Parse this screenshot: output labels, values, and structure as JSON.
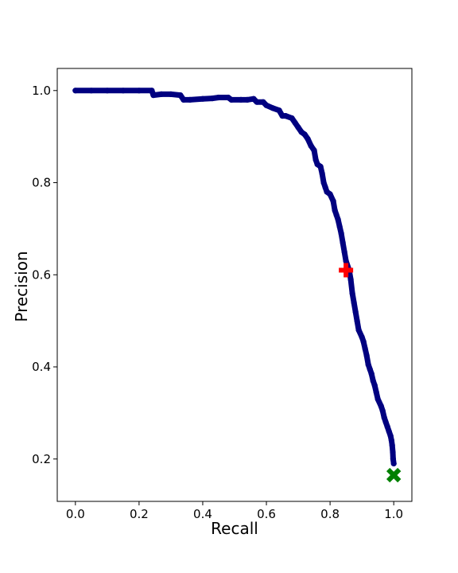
{
  "chart_data": {
    "type": "line",
    "title": "",
    "xlabel": "Recall",
    "ylabel": "Precision",
    "xlim": [
      -0.057,
      1.057
    ],
    "ylim": [
      0.108,
      1.048
    ],
    "xticks": [
      0.0,
      0.2,
      0.4,
      0.6,
      0.8,
      1.0
    ],
    "yticks": [
      0.2,
      0.4,
      0.6,
      0.8,
      1.0
    ],
    "xtick_labels": [
      "0.0",
      "0.2",
      "0.4",
      "0.6",
      "0.8",
      "1.0"
    ],
    "ytick_labels": [
      "0.2",
      "0.4",
      "0.6",
      "0.8",
      "1.0"
    ],
    "grid": false,
    "series": [
      {
        "marker": "circle",
        "color": "#000080",
        "x": [
          0.0,
          0.05,
          0.1,
          0.15,
          0.2,
          0.24,
          0.245,
          0.27,
          0.3,
          0.33,
          0.34,
          0.36,
          0.4,
          0.43,
          0.45,
          0.48,
          0.49,
          0.52,
          0.54,
          0.56,
          0.57,
          0.59,
          0.6,
          0.62,
          0.64,
          0.65,
          0.66,
          0.68,
          0.69,
          0.7,
          0.71,
          0.72,
          0.73,
          0.74,
          0.75,
          0.755,
          0.76,
          0.77,
          0.775,
          0.78,
          0.785,
          0.79,
          0.8,
          0.81,
          0.815,
          0.82,
          0.825,
          0.83,
          0.835,
          0.84,
          0.845,
          0.85,
          0.86,
          0.865,
          0.87,
          0.875,
          0.88,
          0.885,
          0.89,
          0.9,
          0.905,
          0.91,
          0.915,
          0.92,
          0.925,
          0.93,
          0.935,
          0.94,
          0.945,
          0.95,
          0.96,
          0.965,
          0.97,
          0.975,
          0.98,
          0.985,
          0.99,
          0.993,
          0.995,
          0.997,
          0.998,
          1.0
        ],
        "y": [
          1.0,
          1.0,
          1.0,
          1.0,
          1.0,
          1.0,
          0.99,
          0.992,
          0.992,
          0.99,
          0.98,
          0.98,
          0.982,
          0.983,
          0.985,
          0.985,
          0.98,
          0.98,
          0.98,
          0.982,
          0.975,
          0.975,
          0.968,
          0.962,
          0.957,
          0.945,
          0.945,
          0.94,
          0.93,
          0.92,
          0.91,
          0.905,
          0.895,
          0.88,
          0.87,
          0.85,
          0.84,
          0.835,
          0.82,
          0.8,
          0.79,
          0.78,
          0.775,
          0.76,
          0.74,
          0.73,
          0.72,
          0.705,
          0.69,
          0.67,
          0.65,
          0.63,
          0.61,
          0.59,
          0.56,
          0.54,
          0.52,
          0.5,
          0.48,
          0.465,
          0.455,
          0.44,
          0.425,
          0.405,
          0.395,
          0.385,
          0.37,
          0.36,
          0.345,
          0.33,
          0.315,
          0.305,
          0.29,
          0.28,
          0.27,
          0.26,
          0.25,
          0.24,
          0.23,
          0.215,
          0.2,
          0.19
        ]
      }
    ],
    "markers": [
      {
        "name": "",
        "shape": "plus",
        "color": "#ff0000",
        "x": 0.85,
        "y": 0.61
      },
      {
        "name": "",
        "shape": "x",
        "color": "#008000",
        "x": 1.0,
        "y": 0.165
      }
    ]
  }
}
